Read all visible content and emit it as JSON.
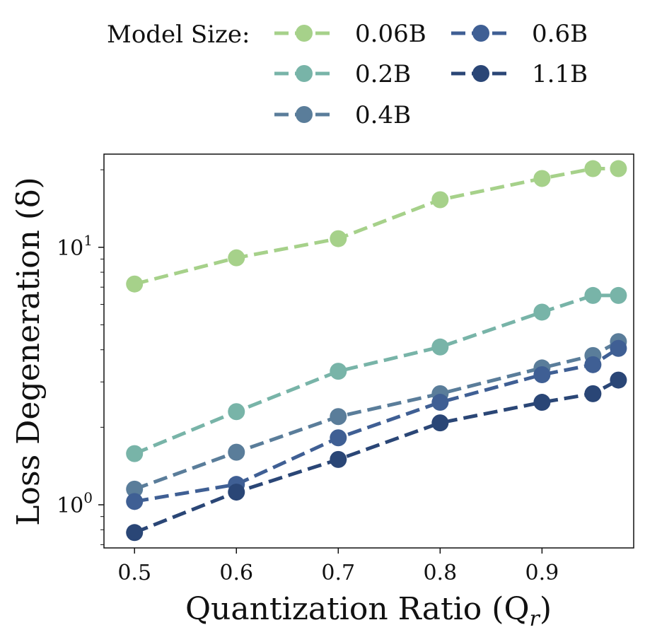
{
  "chart_data": {
    "type": "line",
    "title": "",
    "xlabel": "Quantization Ratio (Q",
    "xlabel_sub": "r",
    "xlabel_close": ")",
    "ylabel": "Loss Degeneration (δ)",
    "yscale": "log",
    "xlim": [
      0.47,
      0.99
    ],
    "ylim": [
      0.68,
      23.0
    ],
    "x": [
      0.5,
      0.6,
      0.7,
      0.8,
      0.9,
      0.95,
      0.975
    ],
    "x_ticks": [
      0.5,
      0.6,
      0.7,
      0.8,
      0.9
    ],
    "x_tick_labels": [
      "0.5",
      "0.6",
      "0.7",
      "0.8",
      "0.9"
    ],
    "y_major_ticks": [
      {
        "value": 1,
        "base": "10",
        "exp": "0"
      },
      {
        "value": 10,
        "base": "10",
        "exp": "1"
      }
    ],
    "legend": {
      "title": "Model Size:",
      "placement": "top",
      "columns": 2
    },
    "series": [
      {
        "name": "0.06B",
        "color": "#a6d18a",
        "values": [
          7.2,
          9.1,
          10.8,
          15.3,
          18.5,
          20.2,
          20.2
        ]
      },
      {
        "name": "0.2B",
        "color": "#78b4a8",
        "values": [
          1.58,
          2.3,
          3.3,
          4.1,
          5.6,
          6.5,
          6.5
        ]
      },
      {
        "name": "0.4B",
        "color": "#5a7d9a",
        "values": [
          1.15,
          1.6,
          2.2,
          2.7,
          3.4,
          3.8,
          4.3
        ]
      },
      {
        "name": "0.6B",
        "color": "#3f5f94",
        "values": [
          1.03,
          1.2,
          1.82,
          2.5,
          3.2,
          3.5,
          4.05
        ]
      },
      {
        "name": "1.1B",
        "color": "#2a4676",
        "values": [
          0.78,
          1.12,
          1.5,
          2.08,
          2.5,
          2.7,
          3.05
        ]
      }
    ]
  }
}
